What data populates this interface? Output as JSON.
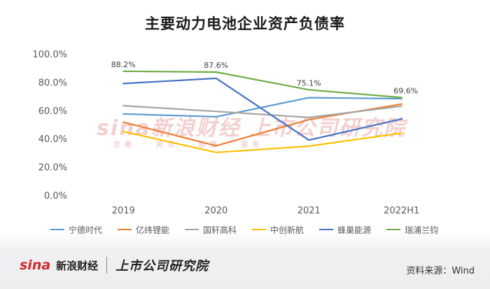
{
  "title": "主要动力电池企业资产负债率",
  "chart_data": {
    "type": "line",
    "title": "主要动力电池企业资产负债率",
    "categories": [
      "2019",
      "2020",
      "2021",
      "2022H1"
    ],
    "y_ticks": [
      "0.0%",
      "20.0%",
      "40.0%",
      "60.0%",
      "80.0%",
      "100.0%"
    ],
    "ylim": [
      0,
      100
    ],
    "grid": false,
    "legend_position": "bottom",
    "series": [
      {
        "name": "宁德时代",
        "color": "#5b9bd5",
        "values": [
          58.0,
          56.0,
          69.5,
          68.8
        ]
      },
      {
        "name": "亿纬锂能",
        "color": "#ed7d31",
        "values": [
          52.2,
          35.5,
          54.0,
          65.0
        ]
      },
      {
        "name": "国轩高科",
        "color": "#a5a5a5",
        "values": [
          63.8,
          59.8,
          55.5,
          63.5
        ]
      },
      {
        "name": "中创新航",
        "color": "#ffc000",
        "values": [
          45.5,
          30.8,
          35.2,
          44.5
        ]
      },
      {
        "name": "蜂巢能源",
        "color": "#4472c4",
        "values": [
          79.5,
          83.2,
          39.5,
          54.5
        ]
      },
      {
        "name": "瑞浦兰钧",
        "color": "#70ad47",
        "values": [
          88.2,
          87.6,
          75.1,
          69.6
        ]
      }
    ],
    "data_labels": [
      {
        "series": "瑞浦兰钧",
        "index": 0,
        "text": "88.2%"
      },
      {
        "series": "瑞浦兰钧",
        "index": 1,
        "text": "87.6%"
      },
      {
        "series": "瑞浦兰钧",
        "index": 2,
        "text": "75.1%"
      },
      {
        "series": "瑞浦兰钧",
        "index": 3,
        "text": "69.6%"
      }
    ]
  },
  "watermark": {
    "brand": "sina新浪财经 上市公司研究院",
    "sub": "交易 · 资讯 · 数据 · 服务"
  },
  "footer": {
    "sina_logo": "sina",
    "sina_name": "新浪财经",
    "institute": "上市公司研究院",
    "source": "资料来源：Wind"
  }
}
